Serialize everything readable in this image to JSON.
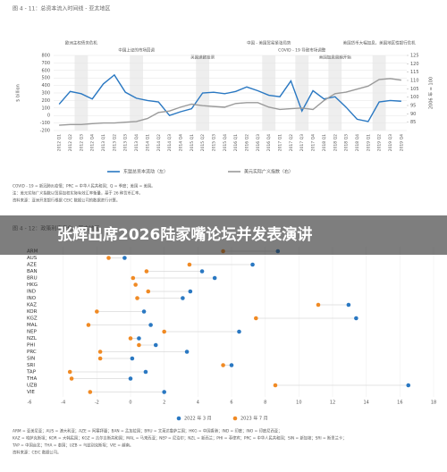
{
  "overlay_title": "张辉出席2026陆家嘴论坛并发表演讲",
  "chart_data": [
    {
      "type": "line",
      "title": "图 4 - 11：总资本流入时间线 - 亚太地区",
      "y_label": "$ billion",
      "y2_label": "2006 年 = 100",
      "categories": [
        "2012 Q1",
        "2012 Q2",
        "2012 Q3",
        "2012 Q4",
        "2013 Q1",
        "2013 Q2",
        "2013 Q3",
        "2013 Q4",
        "2014 Q1",
        "2014 Q2",
        "2014 Q3",
        "2014 Q4",
        "2015 Q1",
        "2015 Q2",
        "2015 Q3",
        "2015 Q4",
        "2016 Q1",
        "2016 Q2",
        "2016 Q3",
        "2016 Q4",
        "2017 Q1",
        "2017 Q2",
        "2017 Q3",
        "2017 Q4",
        "2018 Q1",
        "2018 Q2",
        "2018 Q3",
        "2018 Q4",
        "2019 Q1",
        "2019 Q2",
        "2019 Q3",
        "2019 Q4"
      ],
      "series": [
        {
          "name": "东盟总资本流动（左）",
          "color": "#2a78c2",
          "values": [
            150,
            320,
            290,
            220,
            420,
            540,
            310,
            230,
            200,
            180,
            0,
            50,
            90,
            300,
            310,
            290,
            320,
            380,
            330,
            270,
            250,
            460,
            60,
            330,
            220,
            250,
            110,
            -50,
            -80,
            180,
            200,
            190
          ]
        },
        {
          "name": "美元实际广义指数（右）",
          "color": "#9a9a9a",
          "axis": "y2",
          "values": [
            83.2,
            83.6,
            83.6,
            84.1,
            84.5,
            84.5,
            85.0,
            85.4,
            87.2,
            90.8,
            91.7,
            94.0,
            95.8,
            94.9,
            94.4,
            94.0,
            96.2,
            96.7,
            96.7,
            94.0,
            92.6,
            93.1,
            93.5,
            92.6,
            98.0,
            102.1,
            103.0,
            104.8,
            106.6,
            110.6,
            111.1,
            110.2
          ]
        }
      ],
      "ylim": [
        -200,
        800
      ],
      "yticks": [
        -200,
        -100,
        0,
        100,
        200,
        300,
        400,
        500,
        600,
        700,
        800
      ],
      "y2lim": [
        80,
        125
      ],
      "y2ticks": [
        85,
        90,
        95,
        100,
        105,
        110,
        115,
        120,
        125
      ],
      "annotations": [
        "欧洲主权债务危机",
        "中国上证的市场回调",
        "英国退欧投票",
        "中国 - 美国贸易紧张局势",
        "COVID - 19 导致市场调整",
        "美国加息周期开始",
        "美国货币大幅加息，美国地区性银行危机"
      ],
      "notes": [
        "COVID - 19 = 新冠肺炎疫情；PRC = 中华人民共和国；Q = 季度；美国 = 美国。",
        "注：美元实际广义指数以贸易加权实际有效汇率衡量，基于 26 种货币汇率。",
        "资料来源：亚洲开发银行根据 CEIC 数据公司的数据进行计算。"
      ]
    },
    {
      "type": "dumbbell",
      "title": "图 4 - 12：政策利率变化 - 亚太地区",
      "categories": [
        "ARM",
        "AUS",
        "AZE",
        "BAN",
        "BRU",
        "HKG",
        "IND",
        "INO",
        "KAZ",
        "KOR",
        "KGZ",
        "MAL",
        "NEP",
        "NZL",
        "PHI",
        "PRC",
        "SIN",
        "SRI",
        "TAP",
        "THA",
        "UZB",
        "VIE"
      ],
      "series": [
        {
          "name": "2022 年 3 月",
          "color": "#2a78c2",
          "values": [
            8.75,
            -0.35,
            7.25,
            4.25,
            5,
            null,
            3.55,
            3.1,
            12.95,
            0.8,
            13.4,
            1.2,
            6.45,
            0.5,
            1.5,
            3.35,
            0.1,
            6,
            0.9,
            0,
            16.5,
            2
          ]
        },
        {
          "name": "2023 年 7 月",
          "color": "#f08a24",
          "values": [
            5.5,
            -1.3,
            3.5,
            0.95,
            0.15,
            0.3,
            1.05,
            0.4,
            11.15,
            -2,
            7.45,
            -2.5,
            2,
            0,
            0.5,
            -1.8,
            -1.8,
            5.5,
            -3.6,
            -3.5,
            8.6,
            -2.4
          ]
        }
      ],
      "xlim": [
        -6,
        18
      ],
      "xticks": [
        -6,
        -4,
        -2,
        0,
        2,
        4,
        6,
        8,
        10,
        12,
        14,
        16,
        18
      ],
      "notes": [
        "ARM = 亚美尼亚；AUS = 澳大利亚；AZE = 阿塞拜疆；BAN = 孟加拉国；BRU = 文莱达鲁萨兰国；HKG = 中国香港；IND = 印度；INO = 印度尼西亚；",
        "KAZ = 哈萨克斯坦；KOR = 大韩民国；KGZ = 吉尔吉斯共和国；MAL = 马来西亚；NEP = 尼泊尔；NZL = 新西兰；PHI = 菲律宾；PRC = 中华人民共和国；SIN = 新加坡；SRI = 斯里兰卡；",
        "TAP = 中国台北；THA = 泰国；UZB = 乌兹别克斯坦；VIE = 越南。",
        "资料来源：CEIC 数据公司。"
      ]
    }
  ]
}
